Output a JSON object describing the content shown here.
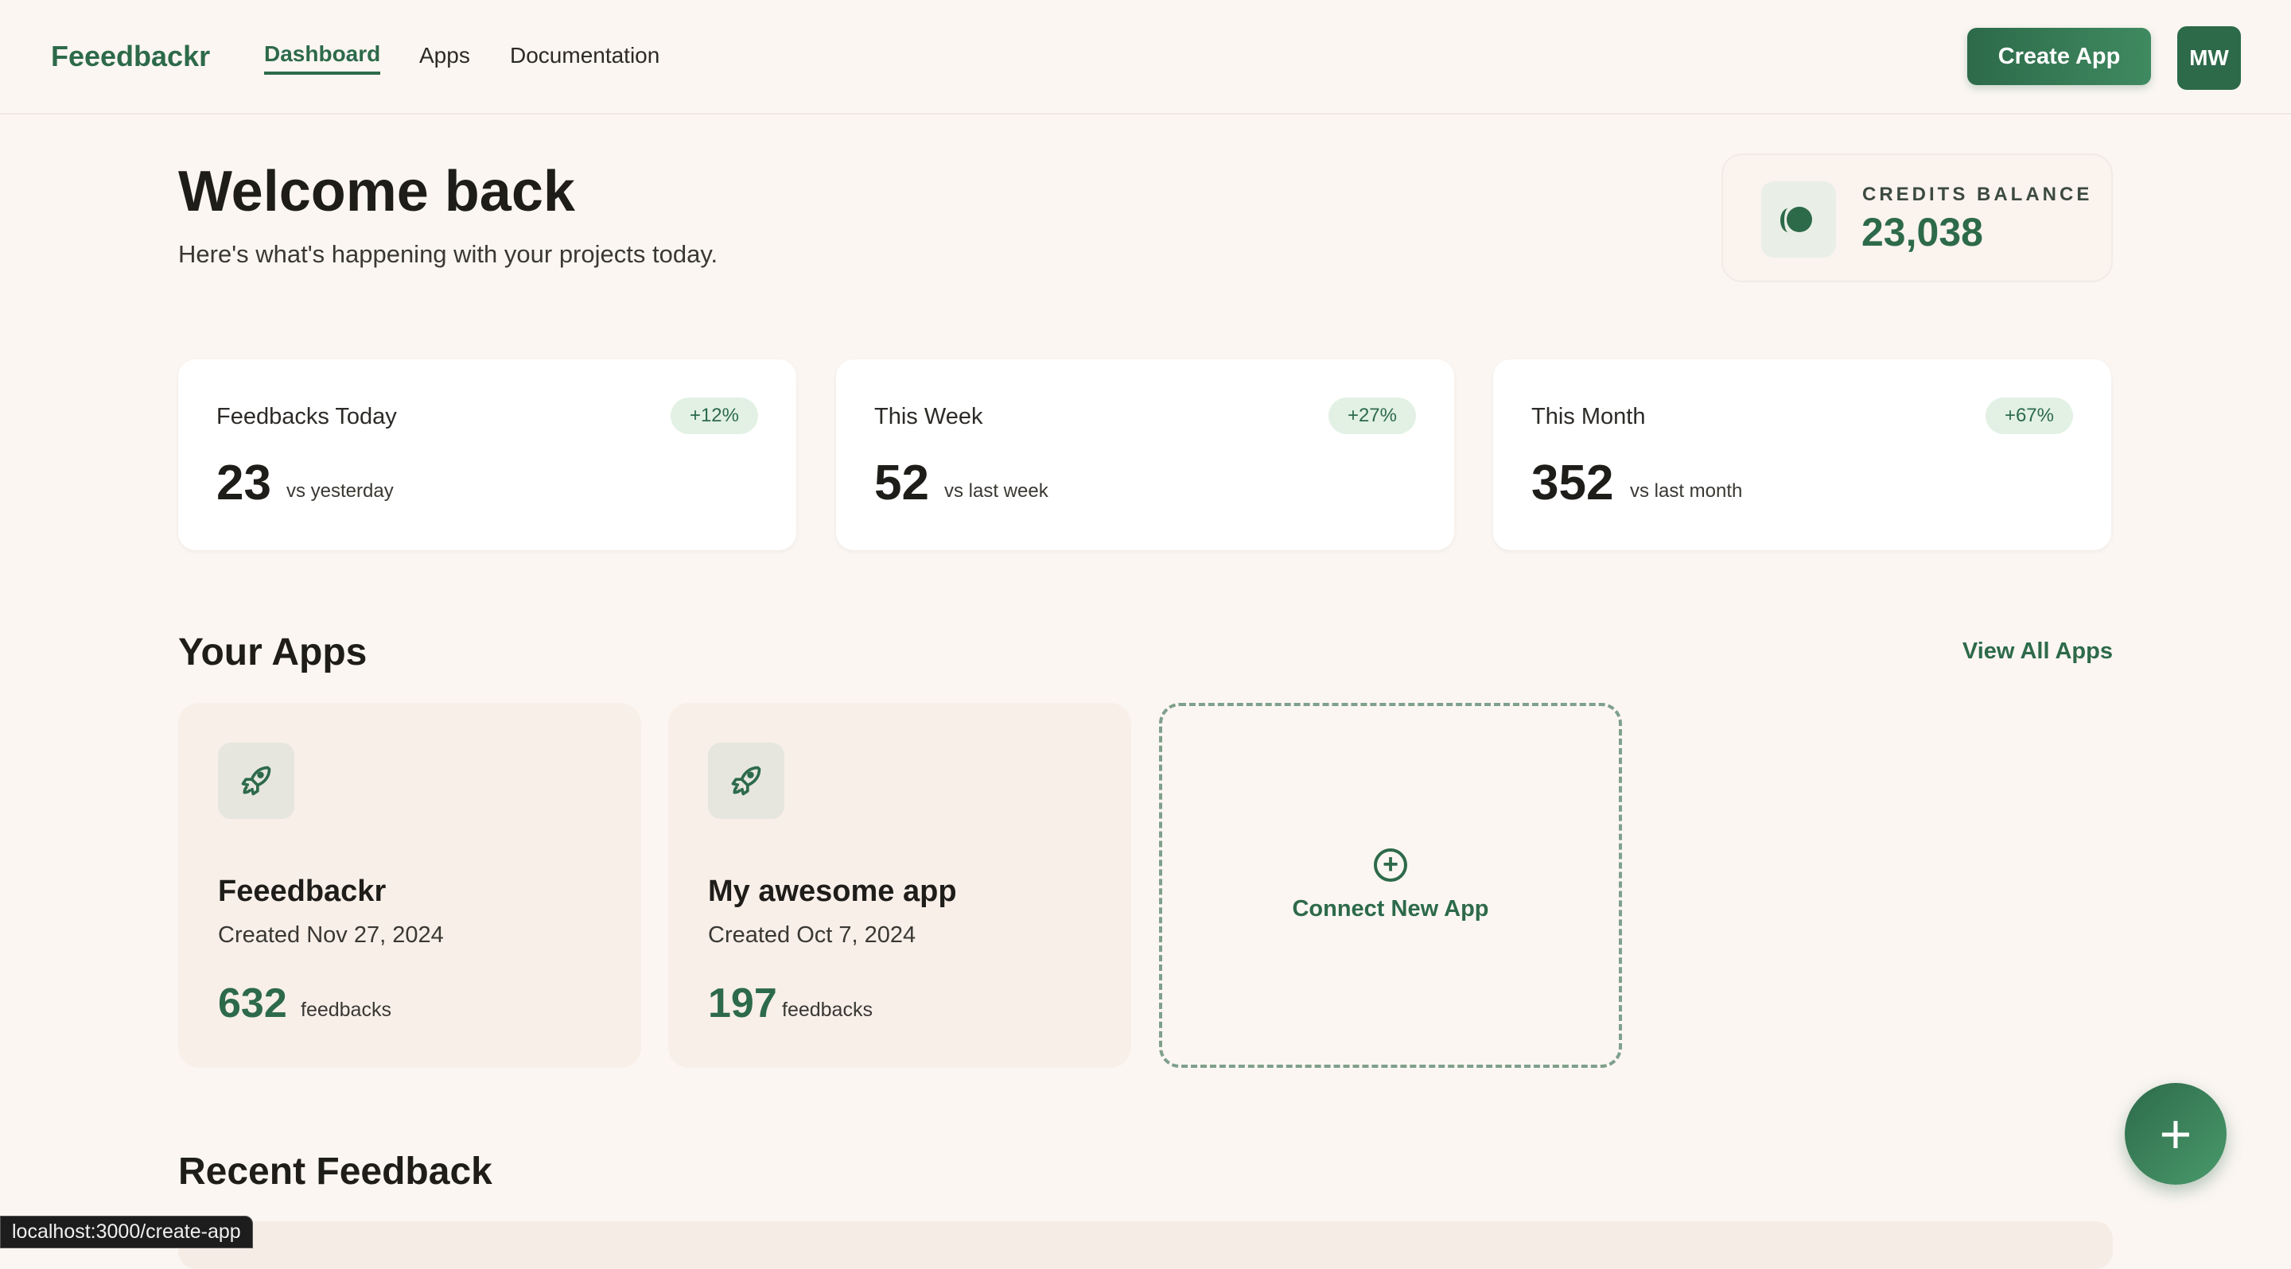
{
  "nav": {
    "logo": "Feeedbackr",
    "links": [
      {
        "label": "Dashboard",
        "active": true
      },
      {
        "label": "Apps"
      },
      {
        "label": "Documentation"
      }
    ],
    "create_label": "Create App",
    "avatar": "MW"
  },
  "welcome": {
    "title": "Welcome back",
    "subtitle": "Here's what's happening with your projects today."
  },
  "credits": {
    "label": "CREDITS BALANCE",
    "value": "23,038",
    "icon": "coins-icon"
  },
  "stats": [
    {
      "label": "Feedbacks Today",
      "badge": "+12%",
      "value": "23",
      "compare": "vs yesterday"
    },
    {
      "label": "This Week",
      "badge": "+27%",
      "value": "52",
      "compare": "vs last week"
    },
    {
      "label": "This Month",
      "badge": "+67%",
      "value": "352",
      "compare": "vs last month"
    }
  ],
  "apps_section": {
    "title": "Your Apps",
    "view_all": "View All Apps",
    "connect": "Connect New App",
    "apps": [
      {
        "name": "Feeedbackr",
        "created": "Created Nov 27, 2024",
        "count": "632",
        "unit": "feedbacks",
        "icon": "rocket-icon"
      },
      {
        "name": "My awesome app",
        "created": "Created Oct 7, 2024",
        "count": "197",
        "unit": "feedbacks",
        "icon": "rocket-icon"
      }
    ]
  },
  "recent": {
    "title": "Recent Feedback"
  },
  "fab": {
    "label": "+"
  },
  "status_bar": "localhost:3000/create-app",
  "colors": {
    "brand": "#2d6a4a",
    "background": "#fbf6f2"
  }
}
